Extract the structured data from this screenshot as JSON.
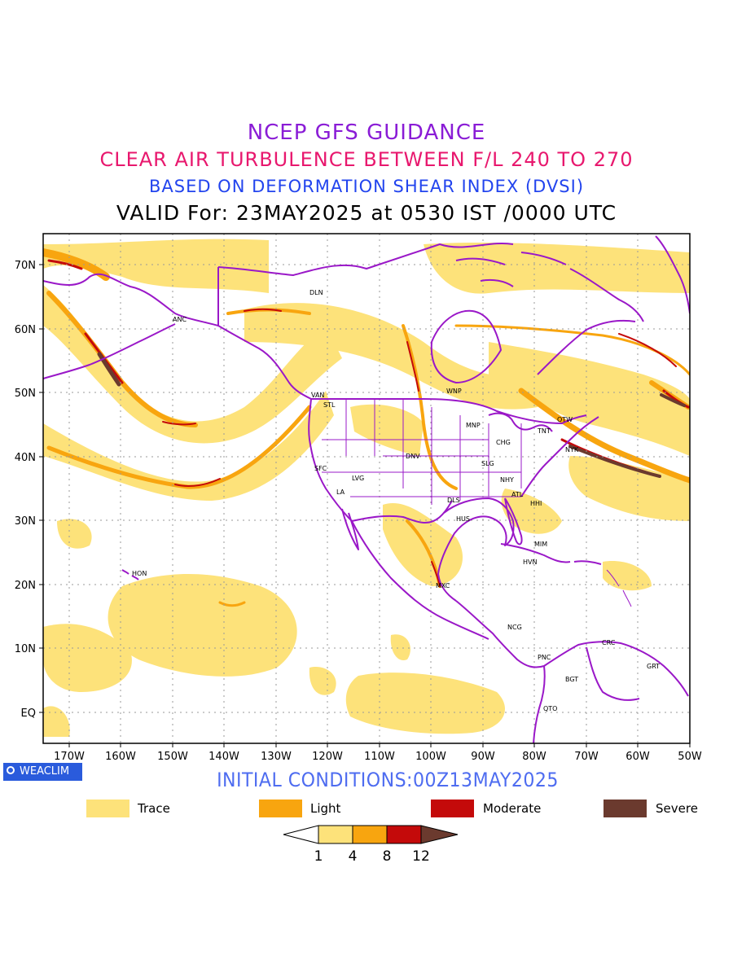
{
  "header": {
    "line1": "NCEP GFS GUIDANCE",
    "line2": "CLEAR AIR TURBULENCE BETWEEN F/L 240 TO 270",
    "line3": "BASED ON DEFORMATION SHEAR INDEX (DVSI)",
    "line4": "VALID For: 23MAY2025 at 0530 IST /0000 UTC"
  },
  "map": {
    "lat_labels": [
      "70N",
      "60N",
      "50N",
      "40N",
      "30N",
      "20N",
      "10N",
      "EQ"
    ],
    "lon_labels": [
      "170W",
      "160W",
      "150W",
      "140W",
      "130W",
      "120W",
      "110W",
      "100W",
      "90W",
      "80W",
      "70W",
      "60W",
      "50W"
    ],
    "stations": [
      "DLN",
      "ANC",
      "VAN",
      "STL",
      "WNP",
      "MNP",
      "OTW",
      "TNT",
      "NYK",
      "CHG",
      "DNV",
      "SFC",
      "LVG",
      "SLG",
      "NHY",
      "LA",
      "DLS",
      "ATL",
      "HHI",
      "HUS",
      "MIM",
      "HON",
      "HVN",
      "MXC",
      "NCG",
      "CRC",
      "PNC",
      "GRT",
      "BGT",
      "QTO"
    ],
    "colors": {
      "trace": "#fde27a",
      "light": "#f8a50f",
      "moderate": "#c40a0a",
      "severe": "#6b3a2e",
      "coast": "#9a18c8",
      "grid": "#999999"
    }
  },
  "footer": {
    "brand": "WEACLIM",
    "initial_conditions": "INITIAL CONDITIONS:00Z13MAY2025"
  },
  "legend": {
    "items": [
      {
        "label": "Trace",
        "color": "#fde27a"
      },
      {
        "label": "Light",
        "color": "#f8a50f"
      },
      {
        "label": "Moderate",
        "color": "#c40a0a"
      },
      {
        "label": "Severe",
        "color": "#6b3a2e"
      }
    ],
    "colorbar_ticks": [
      "1",
      "4",
      "8",
      "12"
    ]
  }
}
